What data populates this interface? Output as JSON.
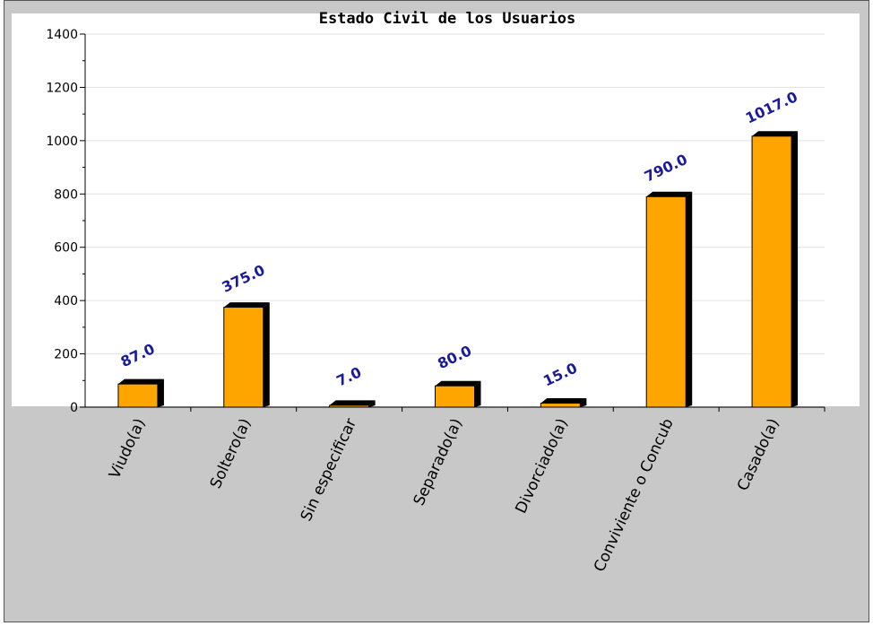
{
  "chart_data": {
    "type": "bar",
    "title": "Estado Civil de los Usuarios",
    "categories": [
      "Viudo(a)",
      "Soltero(a)",
      "Sin especificar",
      "Separado(a)",
      "Divorciado(a)",
      "Conviviente o Concub",
      "Casado(a)"
    ],
    "values": [
      87,
      375,
      7,
      80,
      15,
      790,
      1017
    ],
    "value_labels": [
      "87.0",
      "375.0",
      "7.0",
      "80.0",
      "15.0",
      "790.0",
      "1017.0"
    ],
    "ylim": [
      0,
      1400
    ],
    "yticks": [
      "0",
      "200",
      "400",
      "600",
      "800",
      "1000",
      "1200",
      "1400"
    ],
    "grid": true,
    "colors": {
      "bar": "#ffa500",
      "bar_shadow": "#000000",
      "label": "#1a1a9c",
      "frame": "#c8c8c8",
      "plot": "#ffffff"
    }
  }
}
